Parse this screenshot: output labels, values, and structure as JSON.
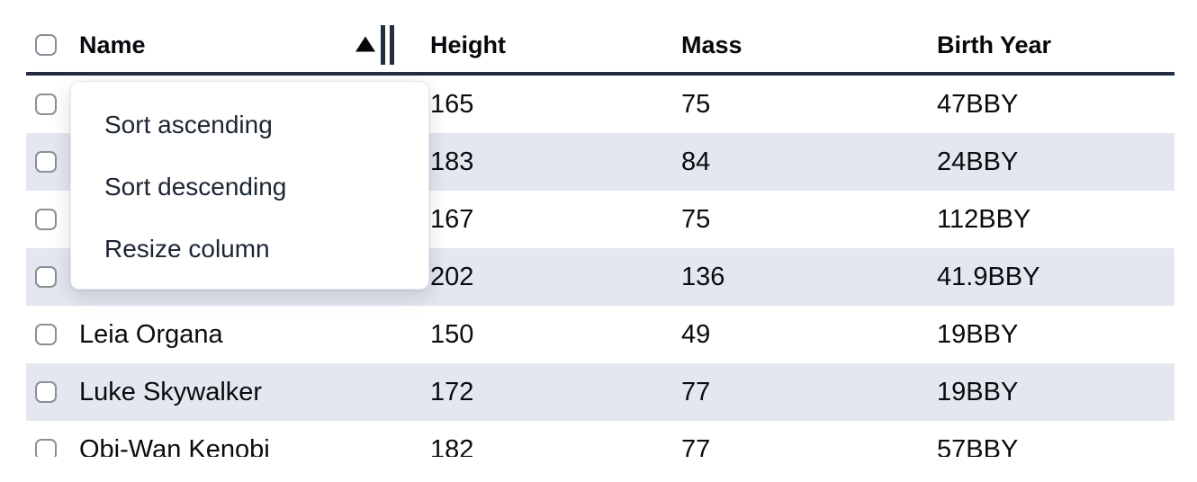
{
  "table": {
    "columns": {
      "select": {
        "label": ""
      },
      "name": {
        "label": "Name",
        "sort_state": "ascending"
      },
      "height": {
        "label": "Height"
      },
      "mass": {
        "label": "Mass"
      },
      "birth_year": {
        "label": "Birth Year"
      }
    },
    "rows": [
      {
        "name": "",
        "height": "165",
        "mass": "75",
        "birth_year": "47BBY"
      },
      {
        "name": "",
        "height": "183",
        "mass": "84",
        "birth_year": "24BBY"
      },
      {
        "name": "",
        "height": "167",
        "mass": "75",
        "birth_year": "112BBY"
      },
      {
        "name": "",
        "height": "202",
        "mass": "136",
        "birth_year": "41.9BBY"
      },
      {
        "name": "Leia Organa",
        "height": "150",
        "mass": "49",
        "birth_year": "19BBY"
      },
      {
        "name": "Luke Skywalker",
        "height": "172",
        "mass": "77",
        "birth_year": "19BBY"
      },
      {
        "name": "Obi-Wan Kenobi",
        "height": "182",
        "mass": "77",
        "birth_year": "57BBY"
      }
    ]
  },
  "column_menu": {
    "items": [
      {
        "label": "Sort ascending"
      },
      {
        "label": "Sort descending"
      },
      {
        "label": "Resize column"
      }
    ]
  },
  "icons": {
    "sort_ascending": "triangle-up",
    "column_resize": "double-vertical-bars",
    "row_select": "checkbox-unchecked"
  },
  "colors": {
    "header_border": "#232f3e",
    "striped_row": "#e3e7ef",
    "menu_text": "#1c2533",
    "body_text": "#0a0b0d",
    "checkbox_border": "#8a8f98"
  }
}
